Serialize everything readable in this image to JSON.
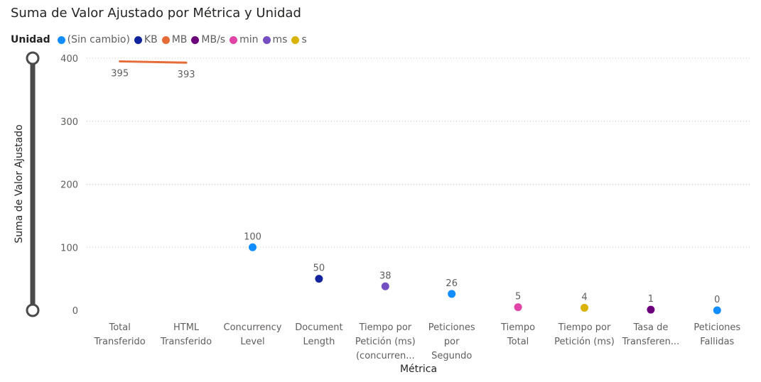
{
  "chart_data": {
    "type": "line",
    "title": "Suma de Valor Ajustado por Métrica y Unidad",
    "xlabel": "Métrica",
    "ylabel": "Suma de Valor Ajustado",
    "ylim": [
      0,
      400
    ],
    "yticks": [
      "0",
      "100",
      "200",
      "300",
      "400"
    ],
    "grid": true,
    "legend_position": "top-left",
    "legend_title": "Unidad",
    "categories": [
      [
        "Total",
        "Transferido"
      ],
      [
        "HTML",
        "Transferido"
      ],
      [
        "Concurrency",
        "Level"
      ],
      [
        "Document",
        "Length"
      ],
      [
        "Tiempo por",
        "Petición (ms)",
        "(concurren..."
      ],
      [
        "Peticiones",
        "por",
        "Segundo"
      ],
      [
        "Tiempo",
        "Total"
      ],
      [
        "Tiempo por",
        "Petición (ms)"
      ],
      [
        "Tasa de",
        "Transferen..."
      ],
      [
        "Peticiones",
        "Fallidas"
      ]
    ],
    "series": [
      {
        "name": "(Sin cambio)",
        "color": "#118DFF",
        "values": [
          null,
          null,
          100,
          null,
          null,
          26,
          null,
          null,
          null,
          0
        ]
      },
      {
        "name": "KB",
        "color": "#12239E",
        "values": [
          null,
          null,
          null,
          50,
          null,
          null,
          null,
          null,
          null,
          null
        ]
      },
      {
        "name": "MB",
        "color": "#E66C37",
        "values": [
          395,
          393,
          null,
          null,
          null,
          null,
          null,
          null,
          null,
          null
        ]
      },
      {
        "name": "MB/s",
        "color": "#6B007B",
        "values": [
          null,
          null,
          null,
          null,
          null,
          null,
          null,
          null,
          1,
          null
        ]
      },
      {
        "name": "min",
        "color": "#E044A7",
        "values": [
          null,
          null,
          null,
          null,
          null,
          null,
          5,
          null,
          null,
          null
        ]
      },
      {
        "name": "ms",
        "color": "#744EC2",
        "values": [
          null,
          null,
          null,
          null,
          38,
          null,
          null,
          null,
          null,
          null
        ]
      },
      {
        "name": "s",
        "color": "#D9B300",
        "values": [
          null,
          null,
          null,
          null,
          null,
          null,
          null,
          4,
          null,
          null
        ]
      }
    ],
    "data_labels": [
      "395",
      "393",
      "100",
      "50",
      "38",
      "26",
      "5",
      "4",
      "1",
      "0"
    ]
  }
}
